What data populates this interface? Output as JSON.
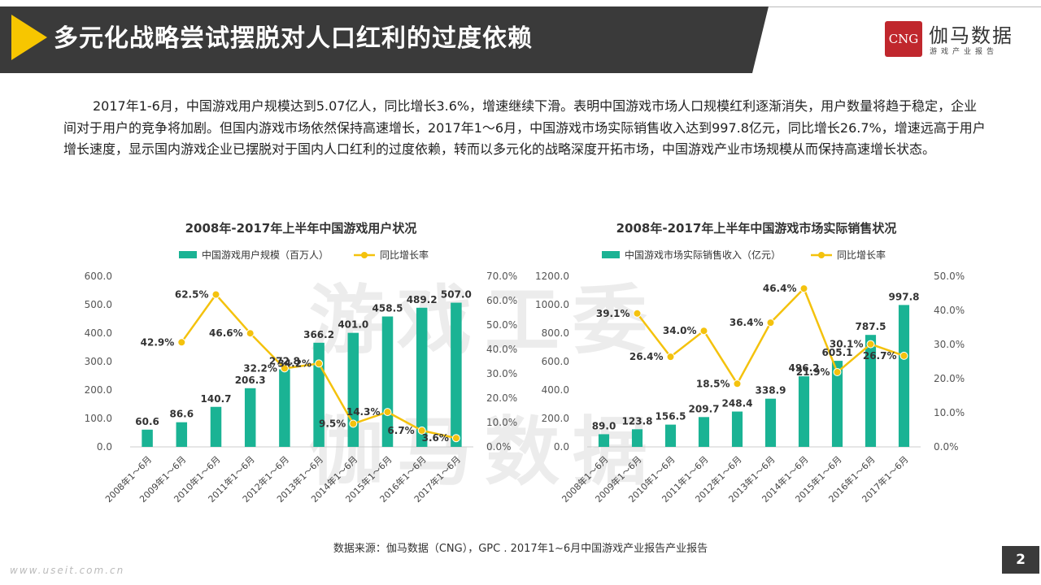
{
  "header": {
    "title": "多元化战略尝试摆脱对人口红利的过度依赖"
  },
  "logo": {
    "badge": "CNG",
    "name": "伽马数据",
    "subtitle": "游戏产业报告"
  },
  "intro": "2017年1-6月，中国游戏用户规模达到5.07亿人，同比增长3.6%，增速继续下滑。表明中国游戏市场人口规模红利逐渐消失，用户数量将趋于稳定，企业间对于用户的竞争将加剧。但国内游戏市场依然保持高速增长，2017年1～6月，中国游戏市场实际销售收入达到997.8亿元，同比增长26.7%，增速远高于用户增长速度，显示国内游戏企业已摆脱对于国内人口红利的过度依赖，转而以多元化的战略深度开拓市场，中国游戏产业市场规模从而保持高速增长状态。",
  "watermark": {
    "line1": "游戏工委",
    "line2": "伽马数据"
  },
  "colors": {
    "bar": "#1ab394",
    "line": "#f4c20d",
    "header": "#3a3a3a",
    "accent": "#f7c600",
    "logo": "#c0272d"
  },
  "chart_data": [
    {
      "type": "bar",
      "title": "2008年-2017年上半年中国游戏用户状况",
      "categories": [
        "2008年1～6月",
        "2009年1～6月",
        "2010年1～6月",
        "2011年1～6月",
        "2012年1～6月",
        "2013年1～6月",
        "2014年1～6月",
        "2015年1～6月",
        "2016年1～6月",
        "2017年1～6月"
      ],
      "series": [
        {
          "name": "中国游戏用户规模（百万人）",
          "type": "bar",
          "axis": "left",
          "values": [
            60.6,
            86.6,
            140.7,
            206.3,
            272.8,
            366.2,
            401.0,
            458.5,
            489.2,
            507.0
          ],
          "labels": [
            "60.6",
            "86.6",
            "140.7",
            "206.3",
            "272.8",
            "366.2",
            "401.0",
            "458.5",
            "489.2",
            "507.0"
          ]
        },
        {
          "name": "同比增长率",
          "type": "line",
          "axis": "right",
          "values": [
            null,
            42.9,
            62.5,
            46.6,
            32.2,
            34.2,
            9.5,
            14.3,
            6.7,
            3.6
          ],
          "labels": [
            "",
            "42.9%",
            "62.5%",
            "46.6%",
            "32.2%",
            "34.2%",
            "9.5%",
            "14.3%",
            "6.7%",
            "3.6%"
          ]
        }
      ],
      "left_axis": {
        "min": 0,
        "max": 600,
        "ticks": [
          "0.0",
          "100.0",
          "200.0",
          "300.0",
          "400.0",
          "500.0",
          "600.0"
        ]
      },
      "right_axis": {
        "min": 0,
        "max": 70,
        "ticks": [
          "0.0%",
          "10.0%",
          "20.0%",
          "30.0%",
          "40.0%",
          "50.0%",
          "60.0%",
          "70.0%"
        ]
      },
      "legend": "top"
    },
    {
      "type": "bar",
      "title": "2008年-2017年上半年中国游戏市场实际销售状况",
      "categories": [
        "2008年1～6月",
        "2009年1～6月",
        "2010年1～6月",
        "2011年1～6月",
        "2012年1～6月",
        "2013年1～6月",
        "2014年1～6月",
        "2015年1～6月",
        "2016年1～6月",
        "2017年1～6月"
      ],
      "series": [
        {
          "name": "中国游戏市场实际销售收入（亿元）",
          "type": "bar",
          "axis": "left",
          "values": [
            89.0,
            123.8,
            156.5,
            209.7,
            248.4,
            338.9,
            496.2,
            605.1,
            787.5,
            997.8
          ],
          "labels": [
            "89.0",
            "123.8",
            "156.5",
            "209.7",
            "248.4",
            "338.9",
            "496.2",
            "605.1",
            "787.5",
            "997.8"
          ]
        },
        {
          "name": "同比增长率",
          "type": "line",
          "axis": "right",
          "values": [
            null,
            39.1,
            26.4,
            34.0,
            18.5,
            36.4,
            46.4,
            21.9,
            30.1,
            26.7
          ],
          "labels": [
            "",
            "39.1%",
            "26.4%",
            "34.0%",
            "18.5%",
            "36.4%",
            "46.4%",
            "21.9%",
            "30.1%",
            "26.7%"
          ]
        }
      ],
      "left_axis": {
        "min": 0,
        "max": 1200,
        "ticks": [
          "0.0",
          "200.0",
          "400.0",
          "600.0",
          "800.0",
          "1000.0",
          "1200.0"
        ]
      },
      "right_axis": {
        "min": 0,
        "max": 50,
        "ticks": [
          "0.0%",
          "10.0%",
          "20.0%",
          "30.0%",
          "40.0%",
          "50.0%"
        ]
      },
      "legend": "top"
    }
  ],
  "source": "数据来源：伽马数据（CNG），GPC . 2017年1~6月中国游戏产业报告产业报告",
  "footer_url": "www.useit.com.cn",
  "page_number": "2"
}
